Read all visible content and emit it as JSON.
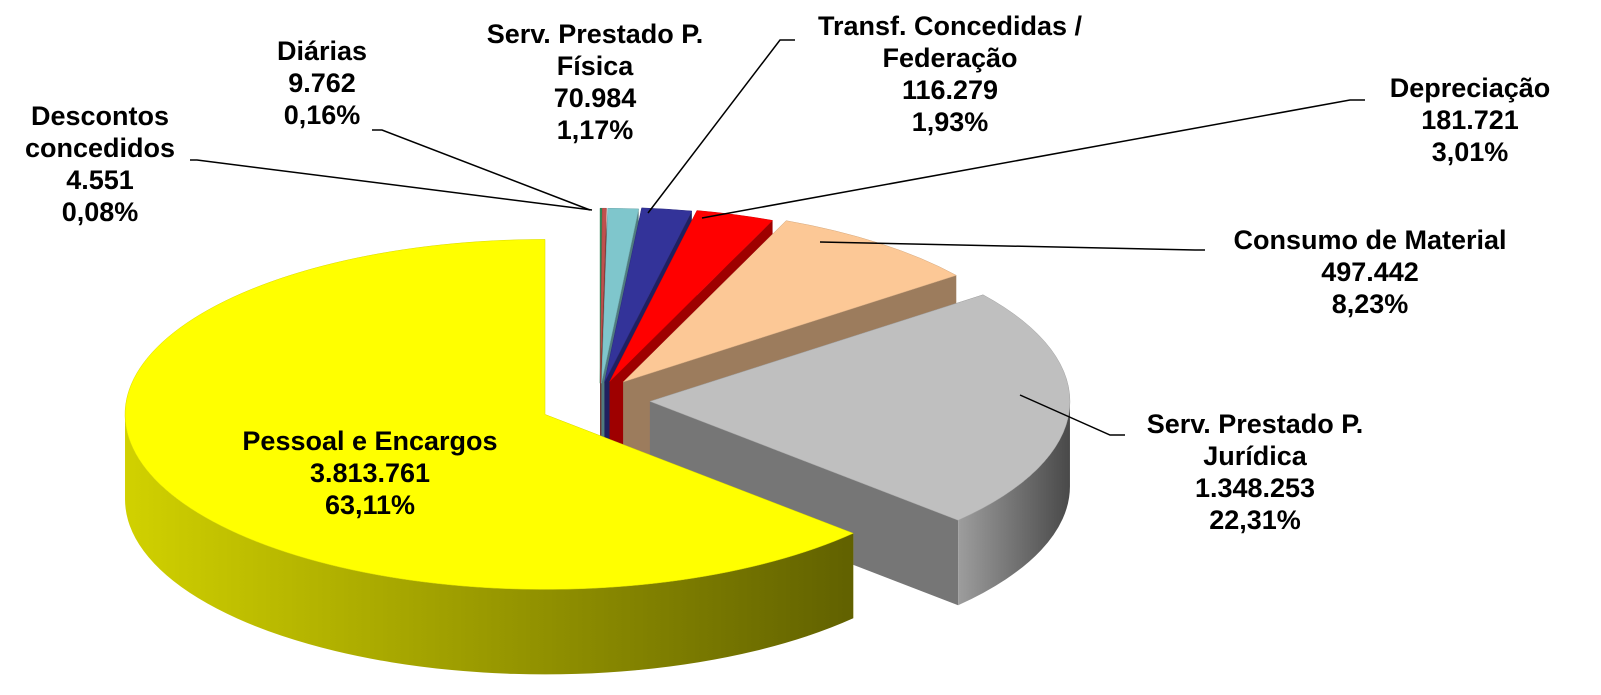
{
  "chart_data": {
    "type": "pie3d",
    "categories": [
      "Descontos concedidos",
      "Diárias",
      "Serv. Prestado P. Física",
      "Transf. Concedidas / Federação",
      "Depreciação",
      "Consumo de Material",
      "Serv. Prestado P. Jurídica",
      "Pessoal e Encargos"
    ],
    "values": [
      4551,
      9762,
      70984,
      116279,
      181721,
      497442,
      1348253,
      3813761
    ],
    "value_labels": [
      "4.551",
      "9.762",
      "70.984",
      "116.279",
      "181.721",
      "497.442",
      "1.348.253",
      "3.813.761"
    ],
    "percentages": [
      0.08,
      0.16,
      1.17,
      1.93,
      3.01,
      8.23,
      22.31,
      63.11
    ],
    "percentage_labels": [
      "0,08%",
      "0,16%",
      "1,17%",
      "1,93%",
      "3,01%",
      "8,23%",
      "22,31%",
      "63,11%"
    ],
    "colors": [
      "#2e8b57",
      "#c0504d",
      "#7fc6cc",
      "#333399",
      "#ff0000",
      "#fcc896",
      "#bfbfbf",
      "#ffff00"
    ]
  }
}
